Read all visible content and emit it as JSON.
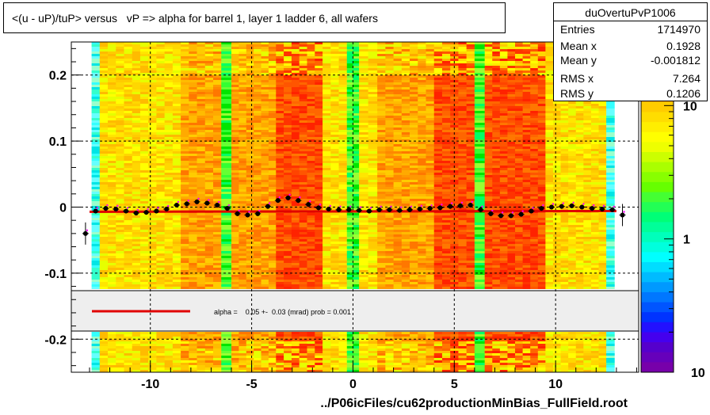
{
  "title": "<(u - uP)/tuP> versus   vP => alpha for barrel 1, layer 1 ladder 6, all wafers",
  "stats": {
    "name": "duOvertuPvP1006",
    "rows": [
      {
        "key": "Entries",
        "value": "1714970"
      },
      {
        "key": "Mean x",
        "value": "0.1928"
      },
      {
        "key": "Mean y",
        "value": "-0.001812"
      },
      {
        "key": "RMS x",
        "value": "7.264"
      },
      {
        "key": "RMS y",
        "value": "0.1206"
      }
    ]
  },
  "fit_label": "alpha =    0.05 +-  0.03 (mrad) prob = 0.001",
  "colors": {
    "fit_line": "#e00000",
    "profile": "#000000",
    "mean_points": "#ff00ff"
  },
  "chart_data": {
    "type": "heatmap",
    "title": "<(u - uP)/tuP> versus   vP => alpha for barrel 1, layer 1 ladder 6, all wafers",
    "xlabel": "../P06icFiles/cu62productionMinBias_FullField.root",
    "ylabel": "",
    "xlim": [
      -13.9,
      14.1
    ],
    "ylim": [
      -0.25,
      0.25
    ],
    "xticks": [
      -10,
      -5,
      0,
      5,
      10
    ],
    "xtick_labels": [
      "-10",
      "-5",
      "0",
      "5",
      "10"
    ],
    "yticks": [
      -0.2,
      -0.1,
      0,
      0.1,
      0.2
    ],
    "ytick_labels": [
      "-0.2",
      "-0.1",
      "0",
      "0.1",
      "0.2"
    ],
    "zscale": "log",
    "zticks": [
      "1",
      "10"
    ],
    "zmin_label": "10",
    "grid": true,
    "columns": [
      {
        "x0": -12.9,
        "x1": -12.5,
        "level": "cyan"
      },
      {
        "x0": -12.5,
        "x1": -8.5,
        "level": "low"
      },
      {
        "x0": -8.5,
        "x1": -6.5,
        "level": "mid"
      },
      {
        "x0": -6.5,
        "x1": -6.0,
        "level": "green"
      },
      {
        "x0": -6.0,
        "x1": -3.8,
        "level": "mid"
      },
      {
        "x0": -3.8,
        "x1": -1.5,
        "level": "high"
      },
      {
        "x0": -1.5,
        "x1": -0.3,
        "level": "low"
      },
      {
        "x0": -0.3,
        "x1": 0.3,
        "level": "green"
      },
      {
        "x0": 0.3,
        "x1": 1.2,
        "level": "low"
      },
      {
        "x0": 1.2,
        "x1": 4.0,
        "level": "mid"
      },
      {
        "x0": 4.0,
        "x1": 6.0,
        "level": "high"
      },
      {
        "x0": 6.0,
        "x1": 6.5,
        "level": "green"
      },
      {
        "x0": 6.5,
        "x1": 9.5,
        "level": "high"
      },
      {
        "x0": 9.5,
        "x1": 12.5,
        "level": "low"
      },
      {
        "x0": 12.5,
        "x1": 12.9,
        "level": "cyan"
      }
    ],
    "profile": {
      "x": [
        -13.2,
        -12.7,
        -12.2,
        -11.7,
        -11.2,
        -10.7,
        -10.2,
        -9.7,
        -9.2,
        -8.7,
        -8.2,
        -7.7,
        -7.2,
        -6.7,
        -6.2,
        -5.7,
        -5.2,
        -4.7,
        -4.2,
        -3.7,
        -3.2,
        -2.7,
        -2.2,
        -1.7,
        -1.2,
        -0.7,
        -0.2,
        0.3,
        0.8,
        1.3,
        1.8,
        2.3,
        2.8,
        3.3,
        3.8,
        4.3,
        4.8,
        5.3,
        5.8,
        6.3,
        6.8,
        7.3,
        7.8,
        8.3,
        8.8,
        9.3,
        9.8,
        10.3,
        10.8,
        11.3,
        11.8,
        12.3,
        12.8,
        13.3
      ],
      "y": [
        -0.04,
        -0.006,
        -0.002,
        -0.003,
        -0.006,
        -0.009,
        -0.008,
        -0.006,
        -0.003,
        0.003,
        0.005,
        0.008,
        0.006,
        0.003,
        -0.002,
        -0.01,
        -0.012,
        -0.01,
        0.001,
        0.01,
        0.014,
        0.01,
        0.004,
        -0.001,
        -0.003,
        -0.004,
        -0.004,
        -0.005,
        -0.006,
        -0.004,
        -0.004,
        -0.005,
        -0.004,
        -0.003,
        -0.002,
        -0.001,
        0.001,
        0.002,
        0.003,
        -0.004,
        -0.01,
        -0.013,
        -0.013,
        -0.011,
        -0.006,
        -0.002,
        0.0,
        0.001,
        0.002,
        0.0,
        -0.002,
        -0.003,
        -0.004,
        -0.012
      ]
    },
    "fit": {
      "x": [
        -13.0,
        13.0
      ],
      "y": [
        -0.007,
        -0.006
      ]
    }
  }
}
